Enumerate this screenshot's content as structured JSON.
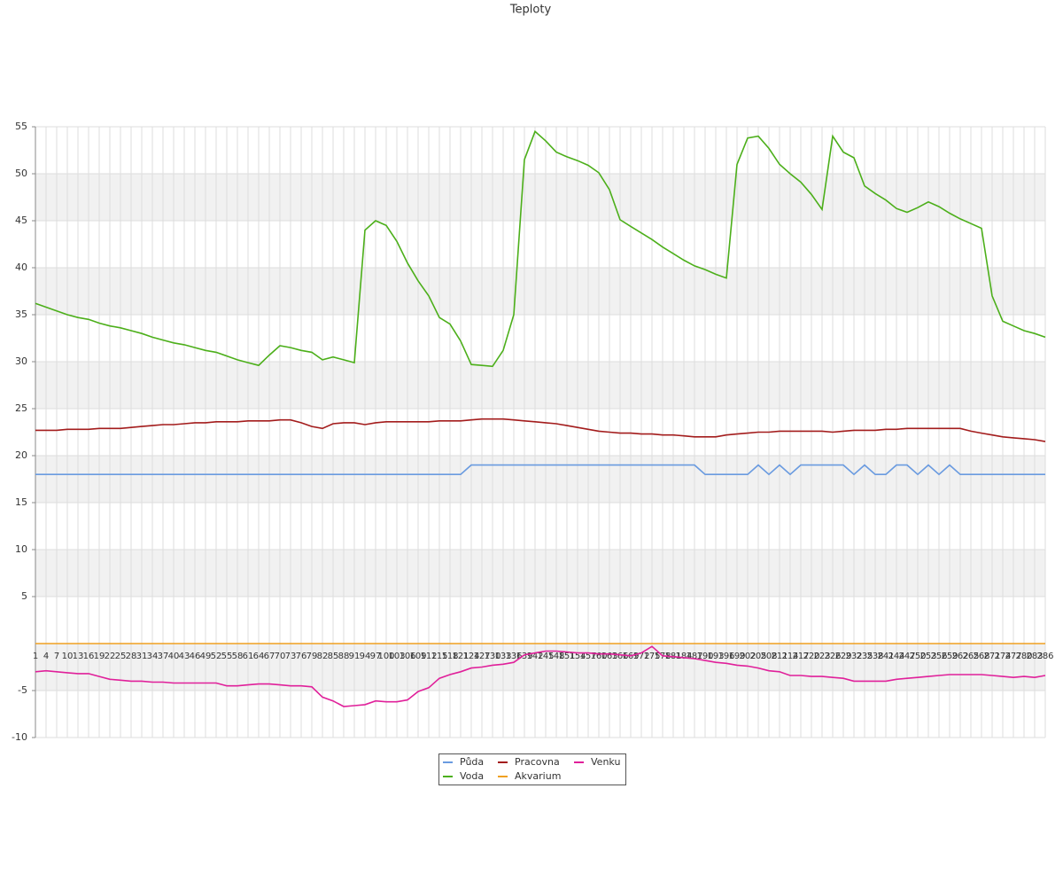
{
  "chart_data": {
    "type": "line",
    "title": "Teploty",
    "categories": [
      "1",
      "4",
      "7",
      "10",
      "13",
      "16",
      "19",
      "22",
      "25",
      "28",
      "31",
      "34",
      "37",
      "40",
      "43",
      "46",
      "49",
      "52",
      "55",
      "58",
      "61",
      "64",
      "67",
      "70",
      "73",
      "76",
      "79",
      "82",
      "85",
      "88",
      "91",
      "94",
      "97",
      "100",
      "103",
      "106",
      "109",
      "112",
      "115",
      "118",
      "121",
      "124",
      "127",
      "130",
      "133",
      "136",
      "139",
      "142",
      "145",
      "148",
      "151",
      "154",
      "157",
      "160",
      "163",
      "166",
      "169",
      "172",
      "175",
      "178",
      "181",
      "184",
      "187",
      "190",
      "193",
      "196",
      "199",
      "202",
      "205",
      "208",
      "211",
      "214",
      "217",
      "220",
      "223",
      "226",
      "229",
      "232",
      "235",
      "238",
      "241",
      "244",
      "247",
      "250",
      "253",
      "256",
      "259",
      "262",
      "265",
      "268",
      "271",
      "274",
      "277",
      "280",
      "283",
      "286"
    ],
    "ylim": [
      -10,
      55
    ],
    "yticks": [
      55,
      50,
      45,
      40,
      35,
      30,
      25,
      20,
      15,
      10,
      5,
      -5,
      -10
    ],
    "grid": true,
    "series": [
      {
        "name": "Půda",
        "color": "#6a9be0",
        "values": [
          18,
          18,
          18,
          18,
          18,
          18,
          18,
          18,
          18,
          18,
          18,
          18,
          18,
          18,
          18,
          18,
          18,
          18,
          18,
          18,
          18,
          18,
          18,
          18,
          18,
          18,
          18,
          18,
          18,
          18,
          18,
          18,
          18,
          18,
          18,
          18,
          18,
          18,
          18,
          18,
          18,
          19,
          19,
          19,
          19,
          19,
          19,
          19,
          19,
          19,
          19,
          19,
          19,
          19,
          19,
          19,
          19,
          19,
          19,
          19,
          19,
          19,
          19,
          18,
          18,
          18,
          18,
          18,
          19,
          18,
          19,
          18,
          19,
          19,
          19,
          19,
          19,
          18,
          19,
          18,
          18,
          19,
          19,
          18,
          19,
          18,
          19,
          18,
          18,
          18,
          18,
          18,
          18,
          18,
          18,
          18
        ]
      },
      {
        "name": "Voda",
        "color": "#4caf1a",
        "values": [
          36.2,
          35.8,
          35.4,
          35.0,
          34.7,
          34.5,
          34.1,
          33.8,
          33.6,
          33.3,
          33.0,
          32.6,
          32.3,
          32.0,
          31.8,
          31.5,
          31.2,
          31.0,
          30.6,
          30.2,
          29.9,
          29.6,
          30.7,
          31.7,
          31.5,
          31.2,
          31.0,
          30.2,
          30.5,
          30.2,
          29.9,
          44.0,
          45.0,
          44.5,
          42.8,
          40.5,
          38.6,
          37.0,
          34.7,
          34.0,
          32.2,
          29.7,
          29.6,
          29.5,
          31.2,
          35.0,
          51.5,
          54.5,
          53.5,
          52.3,
          51.8,
          51.4,
          50.9,
          50.1,
          48.3,
          45.1,
          44.4,
          43.7,
          43.0,
          42.2,
          41.5,
          40.8,
          40.2,
          39.8,
          39.3,
          38.9,
          51.0,
          53.8,
          54.0,
          52.7,
          51.0,
          50.0,
          49.1,
          47.8,
          46.2,
          54.0,
          52.3,
          51.7,
          48.7,
          47.9,
          47.2,
          46.3,
          45.9,
          46.4,
          47.0,
          46.5,
          45.8,
          45.2,
          44.7,
          44.2,
          37.0,
          34.3,
          33.8,
          33.3,
          33.0,
          32.6
        ]
      },
      {
        "name": "Pracovna",
        "color": "#a31c1c",
        "values": [
          22.7,
          22.7,
          22.7,
          22.8,
          22.8,
          22.8,
          22.9,
          22.9,
          22.9,
          23.0,
          23.1,
          23.2,
          23.3,
          23.3,
          23.4,
          23.5,
          23.5,
          23.6,
          23.6,
          23.6,
          23.7,
          23.7,
          23.7,
          23.8,
          23.8,
          23.5,
          23.1,
          22.9,
          23.4,
          23.5,
          23.5,
          23.3,
          23.5,
          23.6,
          23.6,
          23.6,
          23.6,
          23.6,
          23.7,
          23.7,
          23.7,
          23.8,
          23.9,
          23.9,
          23.9,
          23.8,
          23.7,
          23.6,
          23.5,
          23.4,
          23.2,
          23.0,
          22.8,
          22.6,
          22.5,
          22.4,
          22.4,
          22.3,
          22.3,
          22.2,
          22.2,
          22.1,
          22.0,
          22.0,
          22.0,
          22.2,
          22.3,
          22.4,
          22.5,
          22.5,
          22.6,
          22.6,
          22.6,
          22.6,
          22.6,
          22.5,
          22.6,
          22.7,
          22.7,
          22.7,
          22.8,
          22.8,
          22.9,
          22.9,
          22.9,
          22.9,
          22.9,
          22.9,
          22.6,
          22.4,
          22.2,
          22.0,
          21.9,
          21.8,
          21.7,
          21.5
        ]
      },
      {
        "name": "Akvarium",
        "color": "#f0a020",
        "values": [
          0,
          0,
          0,
          0,
          0,
          0,
          0,
          0,
          0,
          0,
          0,
          0,
          0,
          0,
          0,
          0,
          0,
          0,
          0,
          0,
          0,
          0,
          0,
          0,
          0,
          0,
          0,
          0,
          0,
          0,
          0,
          0,
          0,
          0,
          0,
          0,
          0,
          0,
          0,
          0,
          0,
          0,
          0,
          0,
          0,
          0,
          0,
          0,
          0,
          0,
          0,
          0,
          0,
          0,
          0,
          0,
          0,
          0,
          0,
          0,
          0,
          0,
          0,
          0,
          0,
          0,
          0,
          0,
          0,
          0,
          0,
          0,
          0,
          0,
          0,
          0,
          0,
          0,
          0,
          0,
          0,
          0,
          0,
          0,
          0,
          0,
          0,
          0,
          0,
          0,
          0,
          0,
          0,
          0,
          0,
          0
        ]
      },
      {
        "name": "Venku",
        "color": "#e0209a",
        "values": [
          -3,
          -2.9,
          -3.0,
          -3.1,
          -3.2,
          -3.2,
          -3.5,
          -3.8,
          -3.9,
          -4.0,
          -4.0,
          -4.1,
          -4.1,
          -4.2,
          -4.2,
          -4.2,
          -4.2,
          -4.2,
          -4.5,
          -4.5,
          -4.4,
          -4.3,
          -4.3,
          -4.4,
          -4.5,
          -4.5,
          -4.6,
          -5.7,
          -6.1,
          -6.7,
          -6.6,
          -6.5,
          -6.1,
          -6.2,
          -6.2,
          -6.0,
          -5.1,
          -4.7,
          -3.7,
          -3.3,
          -3.0,
          -2.6,
          -2.5,
          -2.3,
          -2.2,
          -2.0,
          -1.2,
          -1.0,
          -0.8,
          -0.8,
          -0.9,
          -1.0,
          -1.0,
          -1.1,
          -1.1,
          -1.2,
          -1.3,
          -1.0,
          -0.3,
          -1.3,
          -1.4,
          -1.5,
          -1.6,
          -1.8,
          -2.0,
          -2.1,
          -2.3,
          -2.4,
          -2.6,
          -2.9,
          -3.0,
          -3.4,
          -3.4,
          -3.5,
          -3.5,
          -3.6,
          -3.7,
          -4.0,
          -4.0,
          -4.0,
          -4.0,
          -3.8,
          -3.7,
          -3.6,
          -3.5,
          -3.4,
          -3.3,
          -3.3,
          -3.3,
          -3.3,
          -3.4,
          -3.5,
          -3.6,
          -3.5,
          -3.6,
          -3.4
        ]
      }
    ]
  }
}
